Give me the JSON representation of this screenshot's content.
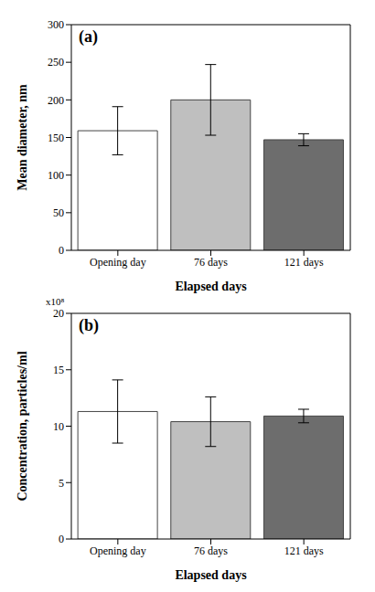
{
  "chart_data": [
    {
      "type": "bar",
      "annotation": "(a)",
      "x_label": "Elapsed days",
      "y_label": "Mean diameter, nm",
      "categories": [
        "Opening day",
        "76 days",
        "121 days"
      ],
      "values": [
        159,
        200,
        147
      ],
      "error": [
        32,
        47,
        8
      ],
      "colors": [
        "#ffffff",
        "#bfbfbf",
        "#6d6d6d"
      ],
      "ylim": [
        0,
        300
      ],
      "yticks": [
        0,
        50,
        100,
        150,
        200,
        250,
        300
      ],
      "grid": false
    },
    {
      "type": "bar",
      "annotation": "(b)",
      "axis_multiplier": "x10⁸",
      "x_label": "Elapsed days",
      "y_label": "Concentration, particles/ml",
      "categories": [
        "Opening day",
        "76 days",
        "121 days"
      ],
      "values": [
        11.3,
        10.4,
        10.9
      ],
      "error": [
        2.8,
        2.2,
        0.6
      ],
      "colors": [
        "#ffffff",
        "#bfbfbf",
        "#6d6d6d"
      ],
      "ylim": [
        0,
        20
      ],
      "yticks": [
        0,
        5,
        10,
        15,
        20
      ],
      "grid": false
    }
  ]
}
